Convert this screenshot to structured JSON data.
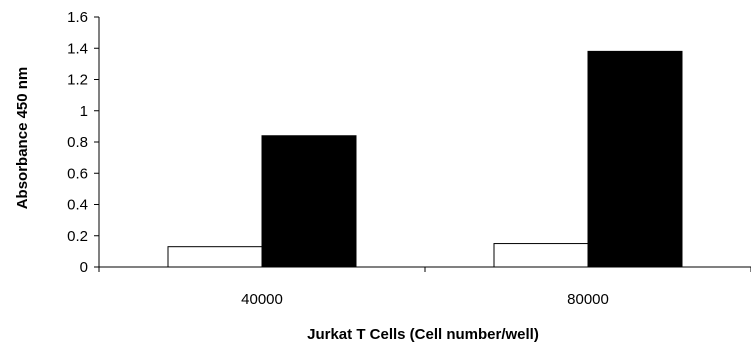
{
  "chart_data": {
    "type": "bar",
    "title": "",
    "xlabel": "Jurkat T Cells (Cell number/well)",
    "ylabel": "Absorbance 450 nm",
    "categories": [
      "40000",
      "80000"
    ],
    "ylim": [
      0,
      1.6
    ],
    "yticks": [
      "0",
      "0.2",
      "0.4",
      "0.6",
      "0.8",
      "1",
      "1.2",
      "1.4",
      "1.6"
    ],
    "grid": false,
    "legend": "none",
    "series": [
      {
        "values": [
          0.13,
          0.15
        ],
        "color": "#ffffff",
        "stroke": "#000000"
      },
      {
        "values": [
          0.84,
          1.38
        ],
        "color": "#000000",
        "stroke": "#000000"
      }
    ]
  }
}
